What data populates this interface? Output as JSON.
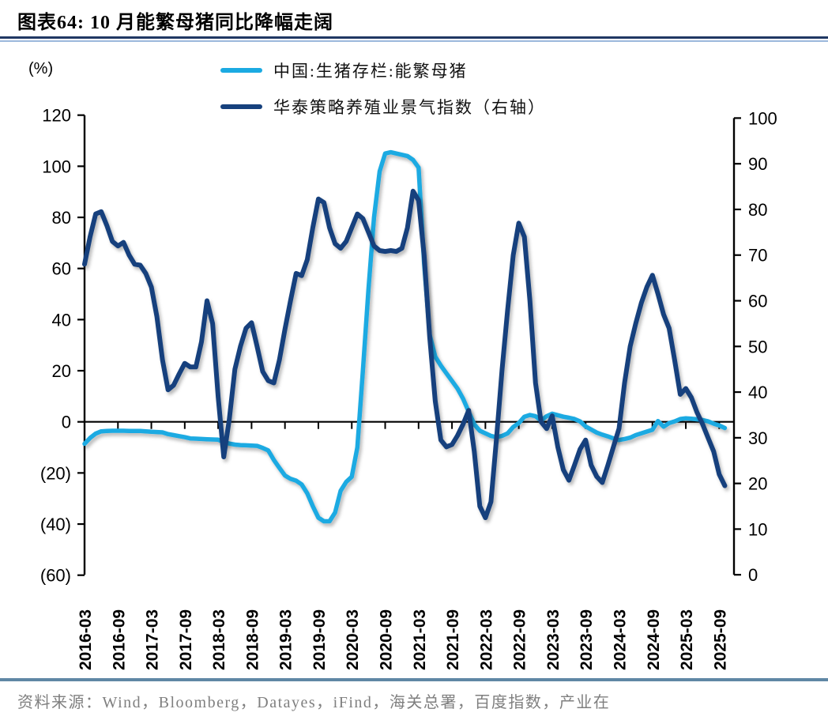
{
  "header": {
    "title": "图表64:  10 月能繁母猪同比降幅走阔"
  },
  "legend": [
    {
      "label": "中国:生猪存栏:能繁母猪",
      "color": "#1BAAE2"
    },
    {
      "label": "华泰策略养殖业景气指数（右轴）",
      "color": "#16417D"
    }
  ],
  "axes": {
    "left_unit": "(%)",
    "left_tick_labels": [
      "120",
      "100",
      "80",
      "60",
      "40",
      "20",
      "0",
      "(20)",
      "(40)",
      "(60)"
    ],
    "left_tick_values": [
      120,
      100,
      80,
      60,
      40,
      20,
      0,
      -20,
      -40,
      -60
    ],
    "right_tick_labels": [
      "100",
      "90",
      "80",
      "70",
      "60",
      "50",
      "40",
      "30",
      "20",
      "10",
      "0"
    ],
    "right_tick_values": [
      100,
      90,
      80,
      70,
      60,
      50,
      40,
      30,
      20,
      10,
      0
    ],
    "x_tick_labels": [
      "2016-03",
      "2016-09",
      "2017-03",
      "2017-09",
      "2018-03",
      "2018-09",
      "2019-03",
      "2019-09",
      "2020-03",
      "2020-09",
      "2021-03",
      "2021-09",
      "2022-03",
      "2022-09",
      "2023-03",
      "2023-09",
      "2024-03",
      "2024-09",
      "2025-03",
      "2025-09"
    ]
  },
  "source": {
    "text": "资料来源：Wind，Bloomberg，Datayes，iFind，海关总署，百度指数，产业在"
  },
  "chart_data": {
    "type": "line",
    "title": "图表64: 10 月能繁母猪同比降幅走阔",
    "left_axis": {
      "unit": "%",
      "range": [
        -60,
        120
      ],
      "ticks_every": 20
    },
    "right_axis": {
      "range": [
        0,
        100
      ],
      "ticks_every": 10
    },
    "grid": false,
    "legend_position": "top",
    "x": [
      "2016-03",
      "2016-04",
      "2016-05",
      "2016-06",
      "2016-07",
      "2016-08",
      "2016-09",
      "2016-10",
      "2016-11",
      "2016-12",
      "2017-01",
      "2017-02",
      "2017-03",
      "2017-04",
      "2017-05",
      "2017-06",
      "2017-07",
      "2017-08",
      "2017-09",
      "2017-10",
      "2017-11",
      "2017-12",
      "2018-01",
      "2018-02",
      "2018-03",
      "2018-04",
      "2018-05",
      "2018-06",
      "2018-07",
      "2018-08",
      "2018-09",
      "2018-10",
      "2018-11",
      "2018-12",
      "2019-01",
      "2019-02",
      "2019-03",
      "2019-04",
      "2019-05",
      "2019-06",
      "2019-07",
      "2019-08",
      "2019-09",
      "2019-10",
      "2019-11",
      "2019-12",
      "2020-01",
      "2020-02",
      "2020-03",
      "2020-04",
      "2020-05",
      "2020-06",
      "2020-07",
      "2020-08",
      "2020-09",
      "2020-10",
      "2020-11",
      "2020-12",
      "2021-01",
      "2021-02",
      "2021-03",
      "2021-04",
      "2021-05",
      "2021-06",
      "2021-07",
      "2021-08",
      "2021-09",
      "2021-10",
      "2021-11",
      "2021-12",
      "2022-01",
      "2022-02",
      "2022-03",
      "2022-04",
      "2022-05",
      "2022-06",
      "2022-07",
      "2022-08",
      "2022-09",
      "2022-10",
      "2022-11",
      "2022-12",
      "2023-01",
      "2023-02",
      "2023-03",
      "2023-04",
      "2023-05",
      "2023-06",
      "2023-07",
      "2023-08",
      "2023-09",
      "2023-10",
      "2023-11",
      "2023-12",
      "2024-01",
      "2024-02",
      "2024-03",
      "2024-04",
      "2024-05",
      "2024-06",
      "2024-07",
      "2024-08",
      "2024-09",
      "2024-10",
      "2024-11",
      "2024-12",
      "2025-01",
      "2025-02",
      "2025-03",
      "2025-04",
      "2025-05",
      "2025-06",
      "2025-07",
      "2025-08",
      "2025-09",
      "2025-10"
    ],
    "series": [
      {
        "name": "中国:生猪存栏:能繁母猪",
        "axis": "left",
        "color": "#1BAAE2",
        "values": [
          -8.6,
          -6.3,
          -4.6,
          -3.7,
          -3.6,
          -3.5,
          -3.5,
          -3.5,
          -3.6,
          -3.6,
          -3.6,
          -3.7,
          -3.9,
          -4.0,
          -4.1,
          -4.8,
          -5.2,
          -5.6,
          -6.0,
          -6.5,
          -6.6,
          -6.7,
          -6.8,
          -6.9,
          -7.0,
          -7.9,
          -8.5,
          -8.9,
          -9.1,
          -9.2,
          -9.3,
          -9.4,
          -10.2,
          -11.2,
          -14.9,
          -18.0,
          -21.0,
          -22.3,
          -23.0,
          -24.5,
          -28.0,
          -33.0,
          -37.5,
          -38.9,
          -38.9,
          -35.5,
          -27.0,
          -23.5,
          -21.5,
          -10.0,
          20.0,
          52.0,
          80.0,
          98.0,
          105.0,
          105.5,
          105.0,
          104.5,
          104.0,
          102.5,
          99.5,
          62.0,
          34.0,
          25.5,
          22.0,
          19.0,
          16.0,
          13.0,
          9.0,
          4.0,
          -1.0,
          -3.5,
          -4.5,
          -5.5,
          -6.0,
          -5.5,
          -4.5,
          -2.0,
          -0.5,
          2.0,
          2.7,
          2.2,
          0.5,
          2.2,
          3.2,
          2.6,
          2.0,
          1.6,
          1.1,
          0.2,
          -1.8,
          -3.0,
          -4.2,
          -5.0,
          -5.7,
          -6.5,
          -7.1,
          -6.7,
          -6.2,
          -5.2,
          -4.5,
          -3.8,
          -3.1,
          0.3,
          -1.9,
          -0.5,
          0.2,
          1.1,
          1.4,
          1.2,
          1.0,
          0.7,
          0.2,
          -0.7,
          -1.4,
          -2.4
        ]
      },
      {
        "name": "华泰策略养殖业景气指数（右轴）",
        "axis": "right",
        "color": "#16417D",
        "values": [
          68,
          74,
          79,
          79.5,
          76.5,
          73,
          72,
          72.8,
          70,
          68,
          67.8,
          66,
          63,
          56.5,
          47,
          40.5,
          41.5,
          44,
          46.3,
          45.5,
          45.5,
          51,
          60,
          55,
          39,
          25.8,
          34,
          45,
          50,
          54,
          55.2,
          50,
          44.5,
          42.5,
          42,
          47,
          53.8,
          60,
          66,
          65.5,
          69,
          76,
          82.3,
          81.5,
          76,
          72.5,
          71.5,
          73,
          76,
          79,
          78,
          75,
          72,
          71,
          70.8,
          71,
          70.8,
          71.5,
          76,
          84,
          82,
          70,
          52,
          38,
          29.5,
          28,
          28.5,
          30.5,
          33,
          36,
          27,
          15,
          12.5,
          16,
          30,
          45,
          58,
          70,
          77,
          74,
          60,
          42,
          33.5,
          32,
          34.8,
          28,
          23,
          20.7,
          24,
          27.5,
          29.5,
          24,
          21.5,
          20.2,
          24,
          28,
          32,
          42,
          50,
          55,
          59.5,
          63,
          65.6,
          61.5,
          57,
          54,
          47,
          39.5,
          40.8,
          38.8,
          35.6,
          33,
          30,
          27,
          22,
          19.5
        ]
      }
    ]
  }
}
